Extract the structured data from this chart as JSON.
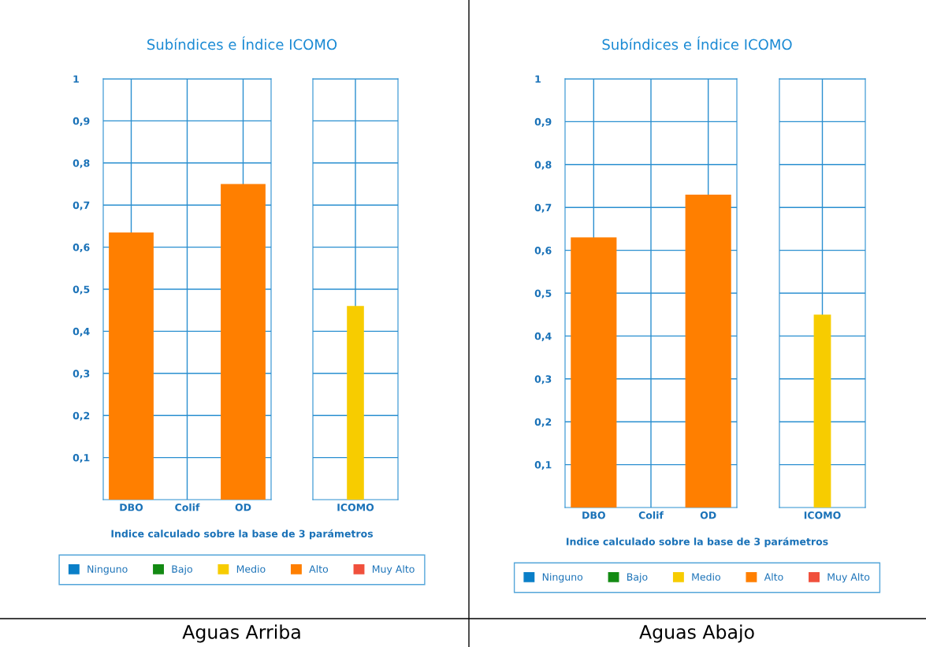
{
  "chart_data": [
    {
      "type": "bar",
      "title": "Subíndices e Índice ICOMO",
      "xlabel": "Indice calculado sobre la base de 3 parámetros",
      "categories": [
        "DBO",
        "Colif",
        "OD"
      ],
      "series": [
        {
          "name": "Ninguno",
          "color": "#0a7fc8",
          "values": [
            null,
            null,
            null
          ]
        },
        {
          "name": "Bajo",
          "color": "#138a13",
          "values": [
            null,
            null,
            null
          ]
        },
        {
          "name": "Medio",
          "color": "#f7cc00",
          "values": [
            null,
            null,
            null
          ]
        },
        {
          "name": "Alto",
          "color": "#ff7f00",
          "values": [
            0.635,
            null,
            0.75
          ]
        },
        {
          "name": "Muy Alto",
          "color": "#f0503c",
          "values": [
            null,
            null,
            null
          ]
        }
      ],
      "ylim": [
        0,
        1
      ],
      "yticks": [
        {
          "value": 0.1,
          "label": "0,1"
        },
        {
          "value": 0.2,
          "label": "0,2"
        },
        {
          "value": 0.3,
          "label": "0,3"
        },
        {
          "value": 0.4,
          "label": "0,4"
        },
        {
          "value": 0.5,
          "label": "0,5"
        },
        {
          "value": 0.6,
          "label": "0,6"
        },
        {
          "value": 0.7,
          "label": "0,7"
        },
        {
          "value": 0.8,
          "label": "0,8"
        },
        {
          "value": 0.9,
          "label": "0,9"
        },
        1
      ],
      "grid": true,
      "legend": "bottom",
      "annotations": [
        "Aguas Arriba"
      ]
    },
    {
      "type": "bar",
      "categories": [
        "ICOMO"
      ],
      "values": [
        0.46
      ],
      "colors": [
        "#f7cc00"
      ],
      "ylim": [
        0,
        1
      ],
      "yticks": [
        0.1,
        0.2,
        0.3,
        0.4,
        0.5,
        0.6,
        0.7,
        0.8,
        0.9,
        1
      ],
      "tick_labels": "x",
      "grid": true
    },
    {
      "type": "bar",
      "title": "Subíndices e Índice ICOMO",
      "xlabel": "Indice calculado sobre la base de 3 parámetros",
      "categories": [
        "DBO",
        "Colif",
        "OD"
      ],
      "series": [
        {
          "name": "Ninguno",
          "color": "#0a7fc8",
          "values": [
            null,
            null,
            null
          ]
        },
        {
          "name": "Bajo",
          "color": "#138a13",
          "values": [
            null,
            null,
            null
          ]
        },
        {
          "name": "Medio",
          "color": "#f7cc00",
          "values": [
            null,
            null,
            null
          ]
        },
        {
          "name": "Alto",
          "color": "#ff7f00",
          "values": [
            0.63,
            null,
            0.73
          ]
        },
        {
          "name": "Muy Alto",
          "color": "#f0503c",
          "values": [
            null,
            null,
            null
          ]
        }
      ],
      "ylim": [
        0,
        1
      ],
      "yticks": [
        {
          "value": 0.1,
          "label": "0,1"
        },
        {
          "value": 0.2,
          "label": "0,2"
        },
        {
          "value": 0.3,
          "label": "0,3"
        },
        {
          "value": 0.4,
          "label": "0,4"
        },
        {
          "value": 0.5,
          "label": "0,5"
        },
        {
          "value": 0.6,
          "label": "0,6"
        },
        {
          "value": 0.7,
          "label": "0,7"
        },
        {
          "value": 0.8,
          "label": "0,8"
        },
        {
          "value": 0.9,
          "label": "0,9"
        },
        1
      ],
      "grid": true,
      "legend": "bottom",
      "annotations": [
        "Aguas Abajo"
      ]
    },
    {
      "type": "bar",
      "categories": [
        "ICOMO"
      ],
      "values": [
        0.45
      ],
      "colors": [
        "#f7cc00"
      ],
      "ylim": [
        0,
        1
      ],
      "yticks": [
        0.1,
        0.2,
        0.3,
        0.4,
        0.5,
        0.6,
        0.7,
        0.8,
        0.9,
        1
      ],
      "tick_labels": "x",
      "grid": true
    }
  ]
}
